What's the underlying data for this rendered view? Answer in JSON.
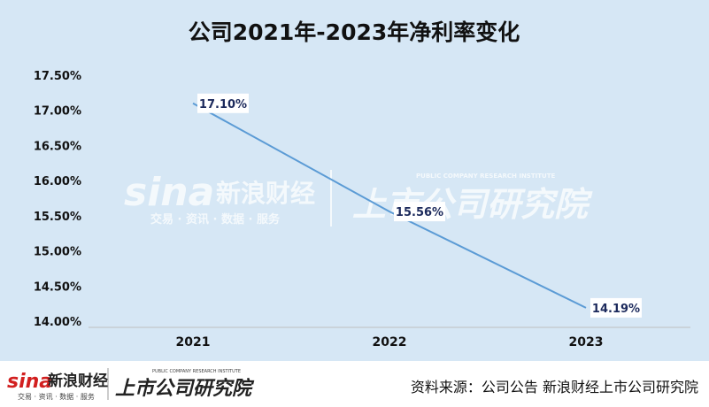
{
  "chart_data": {
    "type": "line",
    "title": "公司2021年-2023年净利率变化",
    "categories": [
      "2021",
      "2022",
      "2023"
    ],
    "series": [
      {
        "values": [
          17.1,
          15.56,
          14.19
        ]
      }
    ],
    "data_labels": [
      "17.10%",
      "15.56%",
      "14.19%"
    ],
    "ylim": [
      14.0,
      17.5
    ],
    "yticks": [
      17.5,
      17.0,
      16.5,
      16.0,
      15.5,
      15.0,
      14.5,
      14.0
    ],
    "ytick_labels": [
      "17.50%",
      "17.00%",
      "16.50%",
      "16.00%",
      "15.50%",
      "15.00%",
      "14.50%",
      "14.00%"
    ],
    "grid": false,
    "line_color": "#5b9bd5"
  },
  "watermark": {
    "brand_cn": "新浪财经",
    "brand_en": "sina",
    "tagline": "交易 · 资讯 · 数据 · 服务",
    "institute_cn": "上市公司研究院",
    "institute_en": "PUBLIC COMPANY RESEARCH INSTITUTE"
  },
  "footer": {
    "source": "资料来源：公司公告 新浪财经上市公司研究院"
  }
}
